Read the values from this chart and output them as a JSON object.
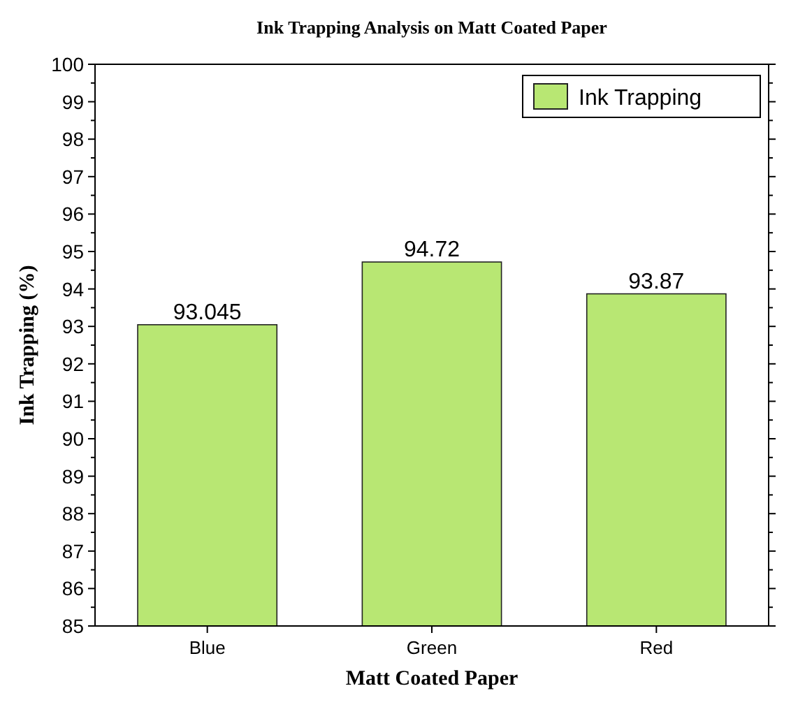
{
  "chart_data": {
    "type": "bar",
    "title": "Ink Trapping Analysis on Matt Coated Paper",
    "xlabel": "Matt Coated Paper",
    "ylabel": "Ink Trapping (%)",
    "categories": [
      "Blue",
      "Green",
      "Red"
    ],
    "series": [
      {
        "name": "Ink Trapping",
        "color": "#b8e773",
        "values": [
          93.045,
          94.72,
          93.87
        ]
      }
    ],
    "ylim": [
      85,
      100
    ],
    "yticks": [
      85,
      86,
      87,
      88,
      89,
      90,
      91,
      92,
      93,
      94,
      95,
      96,
      97,
      98,
      99,
      100
    ],
    "data_labels": true,
    "legend": "top right",
    "grid": false
  }
}
